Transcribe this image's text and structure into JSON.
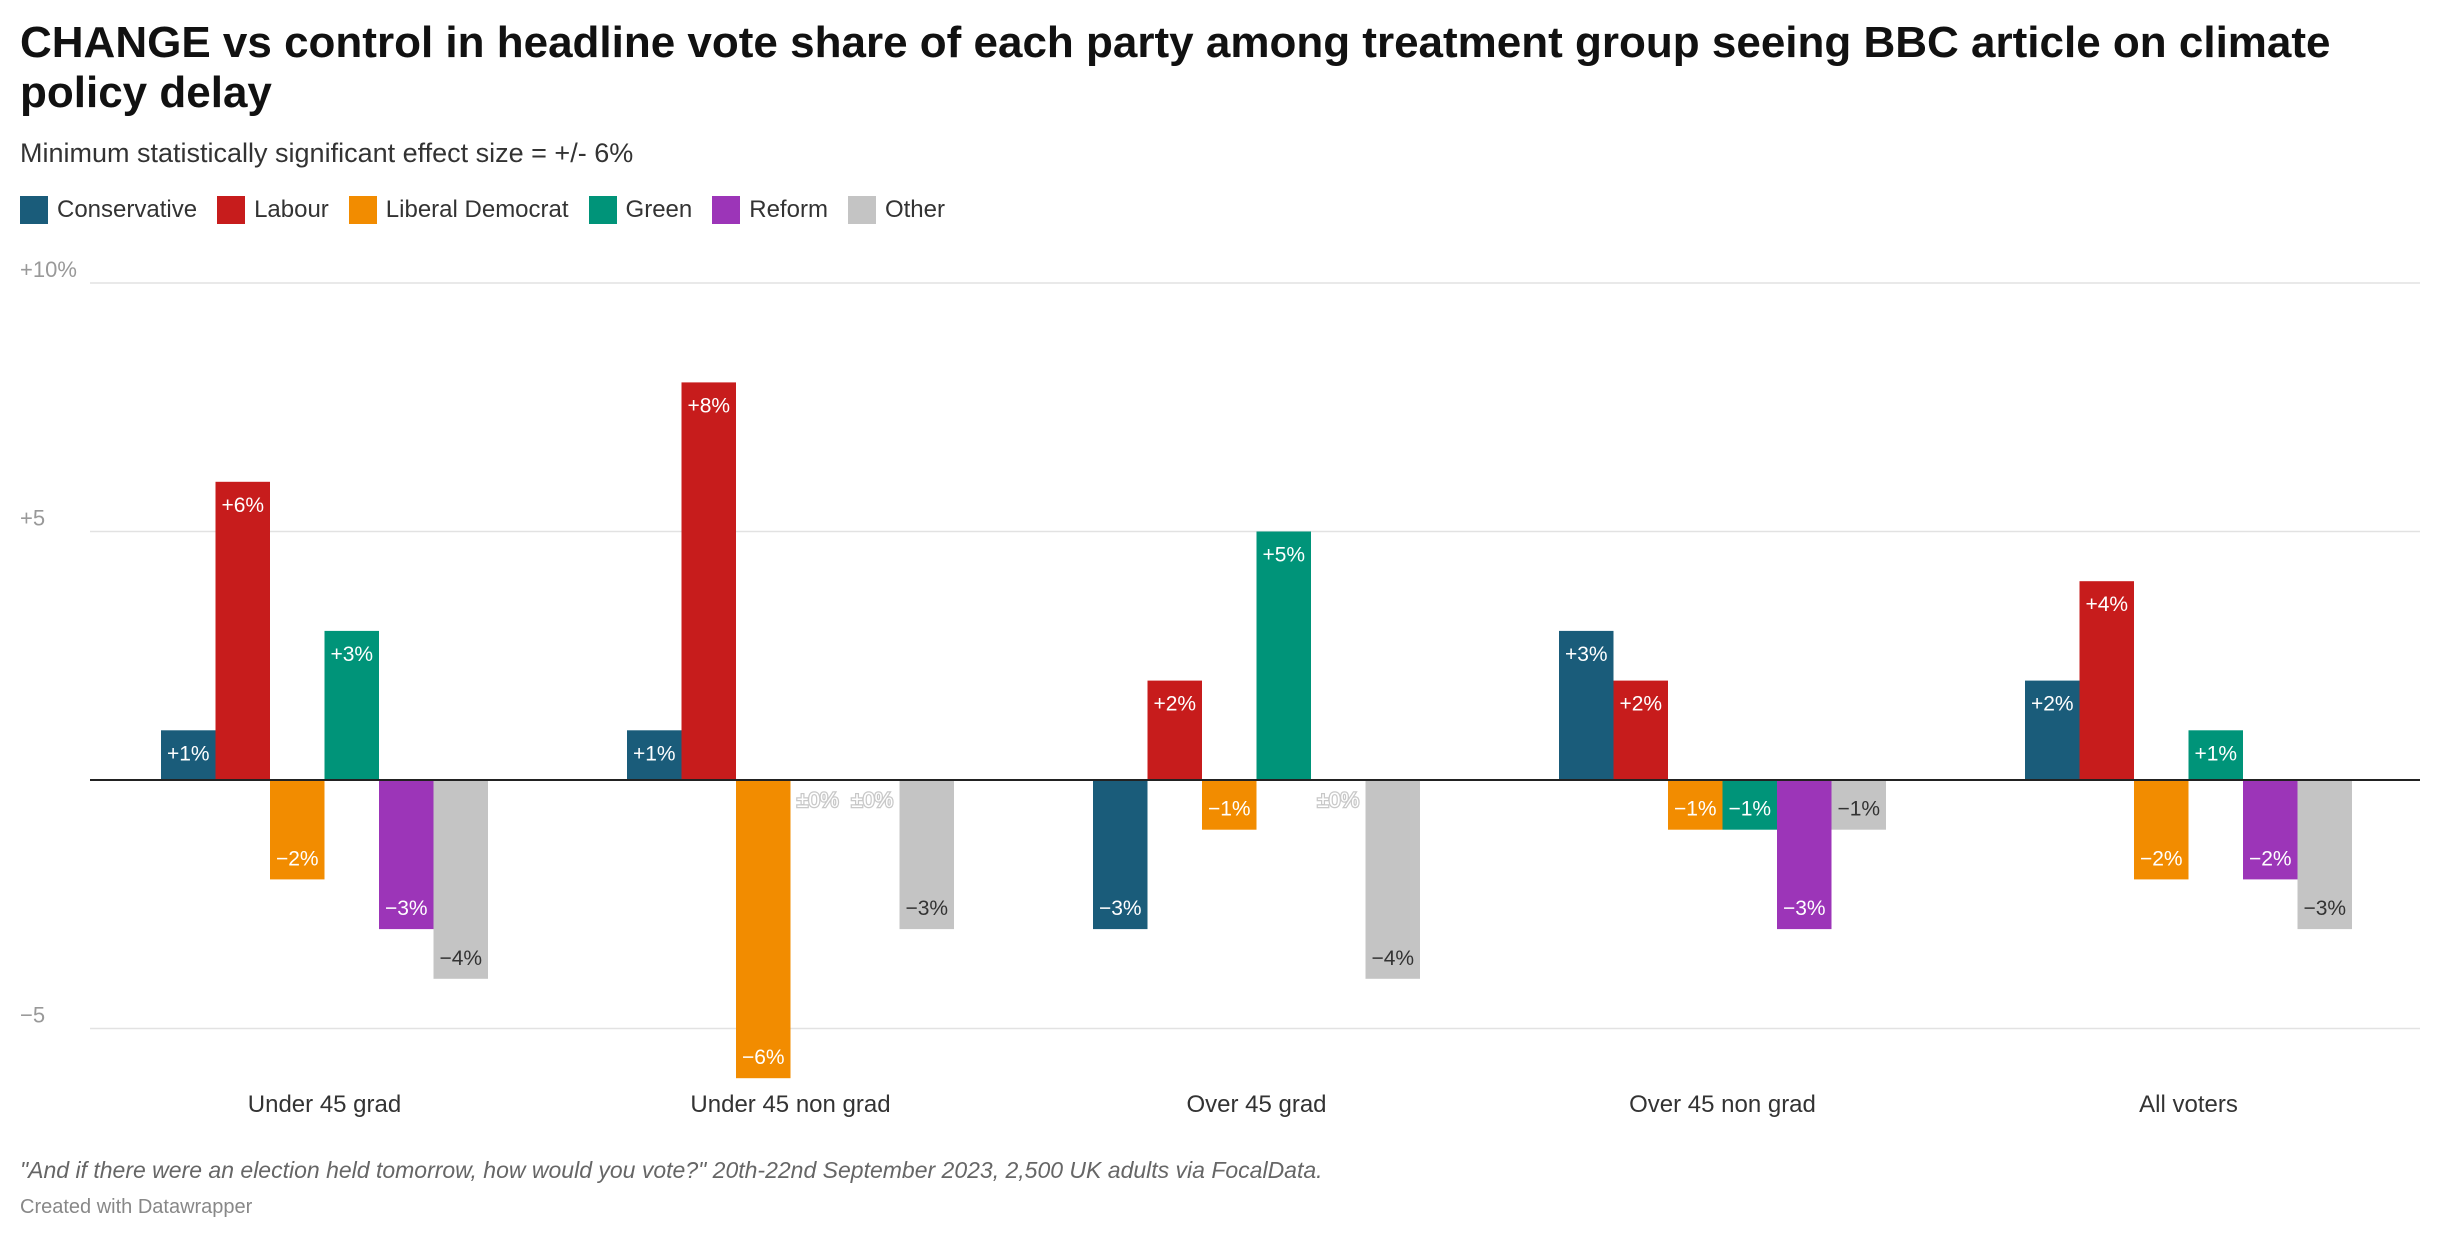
{
  "chart_data": {
    "type": "bar",
    "title": "CHANGE vs control in headline vote share of each party among treatment group seeing BBC article on climate policy delay",
    "subtitle": "Minimum statistically significant effect size = +/- 6%",
    "categories": [
      "Under 45 grad",
      "Under 45 non grad",
      "Over 45 grad",
      "Over 45 non grad",
      "All voters"
    ],
    "series": [
      {
        "name": "Conservative",
        "color": "#1a5c7a",
        "values": [
          1,
          1,
          -3,
          3,
          2
        ],
        "labels": [
          "+1%",
          "+1%",
          "−3%",
          "+3%",
          "+2%"
        ]
      },
      {
        "name": "Labour",
        "color": "#c71c1c",
        "values": [
          6,
          8,
          2,
          2,
          4
        ],
        "labels": [
          "+6%",
          "+8%",
          "+2%",
          "+2%",
          "+4%"
        ]
      },
      {
        "name": "Liberal Democrat",
        "color": "#f28c00",
        "values": [
          -2,
          -6,
          -1,
          -1,
          -2
        ],
        "labels": [
          "−2%",
          "−6%",
          "−1%",
          "−1%",
          "−2%"
        ]
      },
      {
        "name": "Green",
        "color": "#009479",
        "values": [
          3,
          0,
          5,
          -1,
          1
        ],
        "labels": [
          "+3%",
          "±0%",
          "+5%",
          "−1%",
          "+1%"
        ]
      },
      {
        "name": "Reform",
        "color": "#9c35b8",
        "values": [
          -3,
          0,
          0,
          -3,
          -2
        ],
        "labels": [
          "−3%",
          "±0%",
          "±0%",
          "−3%",
          "−2%"
        ]
      },
      {
        "name": "Other",
        "color": "#c4c4c4",
        "values": [
          -4,
          -3,
          -4,
          -1,
          -3
        ],
        "labels": [
          "−4%",
          "−3%",
          "−4%",
          "−1%",
          "−3%"
        ]
      }
    ],
    "ylim": [
      -6,
      10
    ],
    "yticks": [
      {
        "value": 10,
        "label": "+10%"
      },
      {
        "value": 5,
        "label": "+5"
      },
      {
        "value": -5,
        "label": "−5"
      }
    ],
    "grid": true,
    "legend": "top-left"
  },
  "notes": "\"And if there were an election held tomorrow, how would you vote?\" 20th-22nd September 2023, 2,500 UK adults via FocalData.",
  "credit": "Created with Datawrapper"
}
